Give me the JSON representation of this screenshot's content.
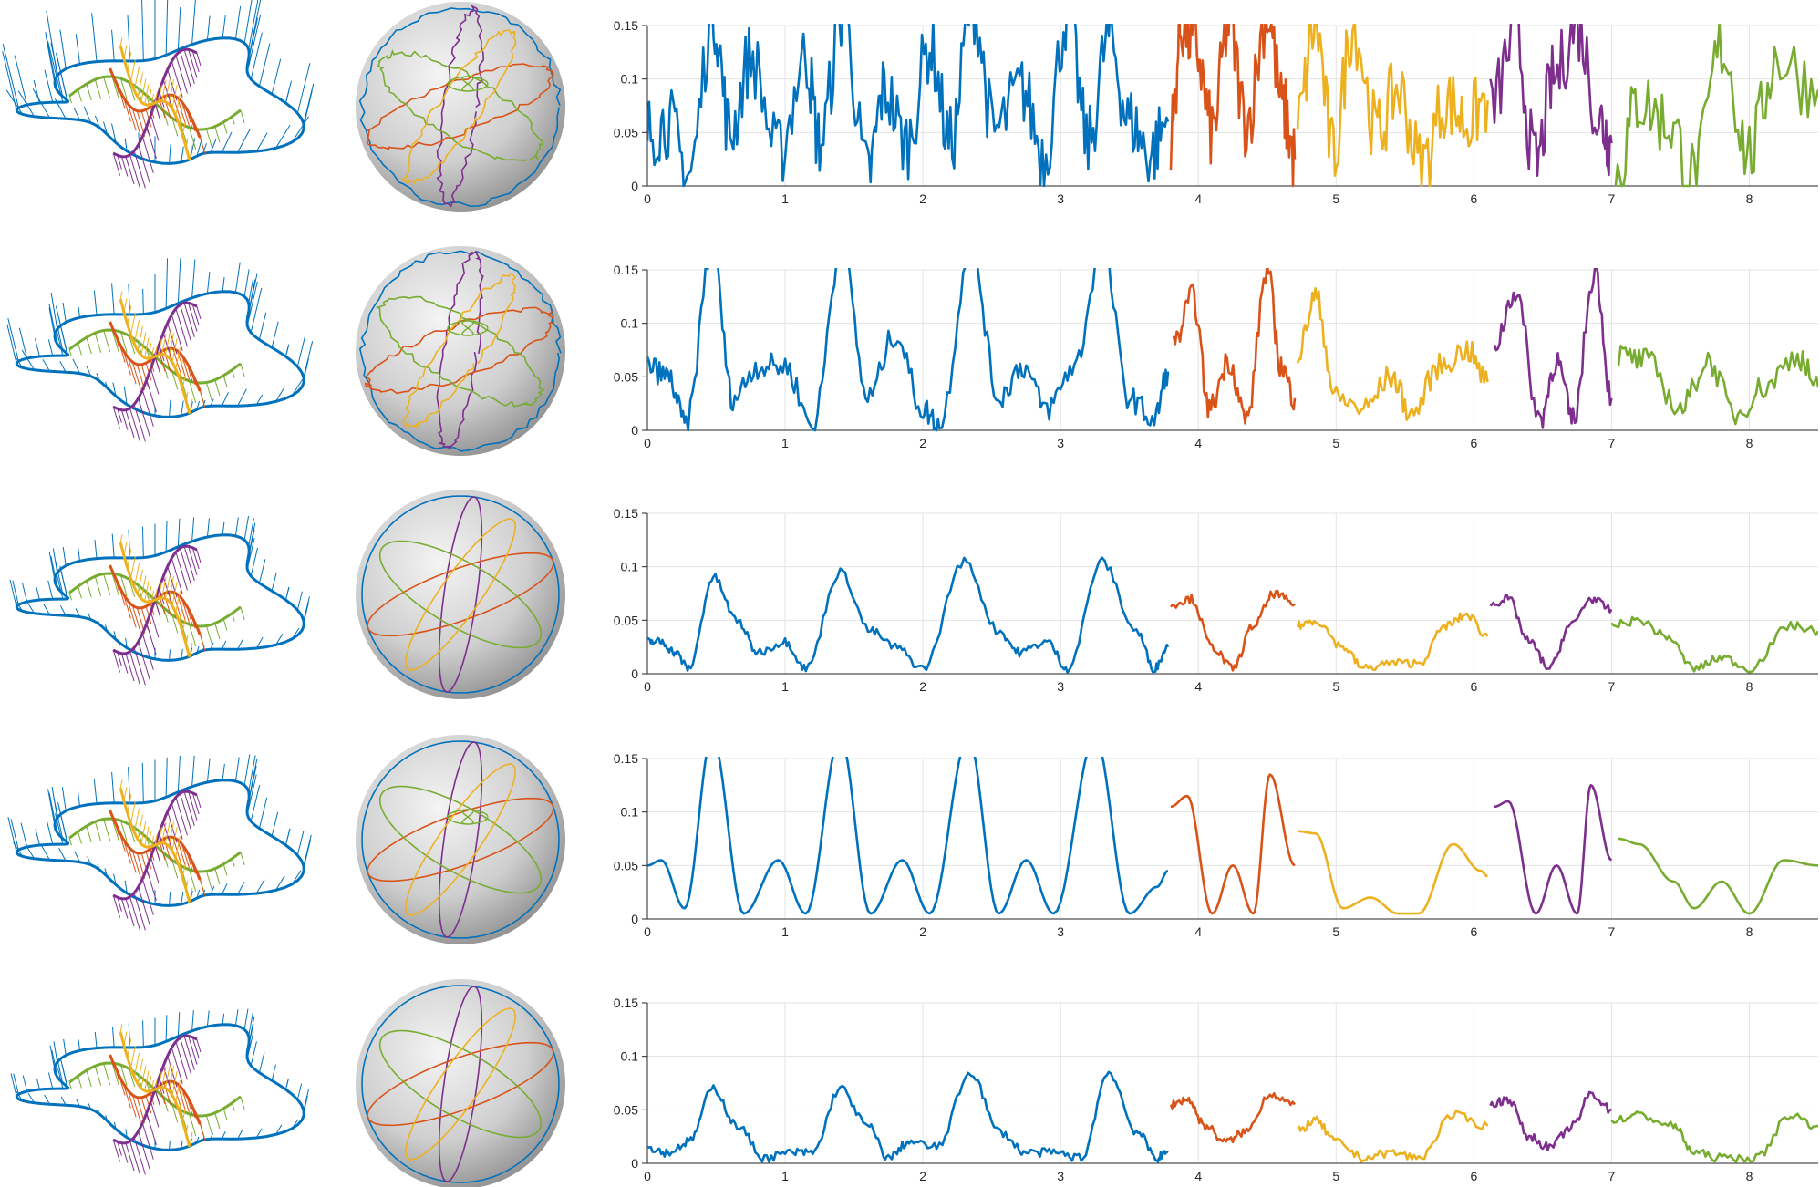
{
  "figure": {
    "colors": {
      "blue": "#0072BD",
      "orange": "#D95319",
      "yellow": "#EDB120",
      "purple": "#7E2F8E",
      "green": "#77AC30",
      "grid": "#e3e3e3",
      "axis": "#262626",
      "sphere_light": "#f2f2f2",
      "sphere_dark": "#8e8e8e"
    },
    "rows": 5,
    "row_labels": [
      "",
      "",
      "",
      "",
      ""
    ]
  },
  "chart_data": [
    {
      "type": "line",
      "row": 1,
      "noise": "high",
      "xlim": [
        0,
        8.5
      ],
      "ylim": [
        0,
        0.15
      ],
      "xticks": [
        "0",
        "1",
        "2",
        "3",
        "4",
        "5",
        "6",
        "7",
        "8"
      ],
      "yticks": [
        "0",
        "0.05",
        "0.1",
        "0.15"
      ],
      "grid": true,
      "segments": [
        {
          "color": "blue",
          "x": [
            0.0,
            0.15,
            0.3,
            0.48,
            0.6,
            0.75,
            0.95,
            1.15,
            1.25,
            1.42,
            1.6,
            1.72,
            1.88,
            2.05,
            2.2,
            2.36,
            2.52,
            2.72,
            2.88,
            3.05,
            3.2,
            3.35,
            3.5,
            3.65,
            3.78
          ],
          "y": [
            0.05,
            0.06,
            0.01,
            0.16,
            0.05,
            0.12,
            0.03,
            0.12,
            0.04,
            0.16,
            0.01,
            0.09,
            0.04,
            0.13,
            0.04,
            0.17,
            0.05,
            0.09,
            0.03,
            0.16,
            0.04,
            0.14,
            0.06,
            0.03,
            0.06
          ]
        },
        {
          "color": "orange",
          "x": [
            3.8,
            3.88,
            3.98,
            4.1,
            4.22,
            4.35,
            4.5,
            4.62,
            4.7
          ],
          "y": [
            0.05,
            0.15,
            0.13,
            0.05,
            0.15,
            0.06,
            0.16,
            0.07,
            0.025
          ]
        },
        {
          "color": "yellow",
          "x": [
            4.72,
            4.85,
            4.98,
            5.12,
            5.3,
            5.45,
            5.62,
            5.8,
            5.95,
            6.1
          ],
          "y": [
            0.06,
            0.15,
            0.03,
            0.15,
            0.05,
            0.09,
            0.02,
            0.08,
            0.06,
            0.08
          ]
        },
        {
          "color": "purple",
          "x": [
            6.12,
            6.3,
            6.45,
            6.58,
            6.75,
            6.92,
            7.0
          ],
          "y": [
            0.07,
            0.14,
            0.02,
            0.1,
            0.15,
            0.06,
            0.04
          ]
        },
        {
          "color": "green",
          "x": [
            7.03,
            7.2,
            7.4,
            7.6,
            7.8,
            8.0,
            8.2,
            8.5
          ],
          "y": [
            0.01,
            0.08,
            0.06,
            0.01,
            0.13,
            0.03,
            0.12,
            0.09
          ]
        }
      ]
    },
    {
      "type": "line",
      "row": 2,
      "noise": "medium",
      "xlim": [
        0,
        8.5
      ],
      "ylim": [
        0,
        0.15
      ],
      "xticks": [
        "0",
        "1",
        "2",
        "3",
        "4",
        "5",
        "6",
        "7",
        "8"
      ],
      "yticks": [
        "0",
        "0.05",
        "0.1",
        "0.15"
      ],
      "grid": true,
      "segments": [
        {
          "color": "blue",
          "x": [
            0.0,
            0.15,
            0.28,
            0.47,
            0.62,
            0.8,
            1.0,
            1.2,
            1.41,
            1.6,
            1.8,
            2.0,
            2.12,
            2.35,
            2.55,
            2.72,
            2.9,
            3.1,
            3.3,
            3.5,
            3.68,
            3.78
          ],
          "y": [
            0.06,
            0.05,
            0.005,
            0.17,
            0.03,
            0.06,
            0.06,
            0.005,
            0.17,
            0.03,
            0.09,
            0.02,
            0.005,
            0.17,
            0.03,
            0.06,
            0.02,
            0.06,
            0.17,
            0.03,
            0.01,
            0.055
          ]
        },
        {
          "color": "orange",
          "x": [
            3.82,
            3.96,
            4.08,
            4.22,
            4.35,
            4.5,
            4.6,
            4.7
          ],
          "y": [
            0.08,
            0.125,
            0.02,
            0.065,
            0.01,
            0.15,
            0.06,
            0.03
          ]
        },
        {
          "color": "yellow",
          "x": [
            4.72,
            4.85,
            5.0,
            5.2,
            5.4,
            5.55,
            5.75,
            5.95,
            6.1
          ],
          "y": [
            0.07,
            0.125,
            0.03,
            0.02,
            0.05,
            0.015,
            0.06,
            0.075,
            0.045
          ]
        },
        {
          "color": "purple",
          "x": [
            6.15,
            6.3,
            6.48,
            6.6,
            6.72,
            6.88,
            7.0
          ],
          "y": [
            0.08,
            0.13,
            0.01,
            0.065,
            0.01,
            0.15,
            0.03
          ]
        },
        {
          "color": "green",
          "x": [
            7.05,
            7.25,
            7.5,
            7.7,
            7.9,
            8.1,
            8.35,
            8.5
          ],
          "y": [
            0.07,
            0.065,
            0.02,
            0.065,
            0.015,
            0.04,
            0.07,
            0.04
          ]
        }
      ]
    },
    {
      "type": "line",
      "row": 3,
      "noise": "low",
      "xlim": [
        0,
        8.5
      ],
      "ylim": [
        0,
        0.15
      ],
      "xticks": [
        "0",
        "1",
        "2",
        "3",
        "4",
        "5",
        "6",
        "7",
        "8"
      ],
      "yticks": [
        "0",
        "0.05",
        "0.1",
        "0.15"
      ],
      "grid": true,
      "segments": [
        {
          "color": "blue",
          "x": [
            0.0,
            0.1,
            0.2,
            0.3,
            0.48,
            0.65,
            0.8,
            1.0,
            1.15,
            1.4,
            1.62,
            1.8,
            2.0,
            2.3,
            2.55,
            2.7,
            2.9,
            3.05,
            3.3,
            3.55,
            3.68,
            3.78
          ],
          "y": [
            0.03,
            0.03,
            0.02,
            0.005,
            0.09,
            0.05,
            0.02,
            0.03,
            0.005,
            0.095,
            0.04,
            0.025,
            0.005,
            0.105,
            0.04,
            0.02,
            0.03,
            0.005,
            0.105,
            0.04,
            0.005,
            0.025
          ]
        },
        {
          "color": "orange",
          "x": [
            3.8,
            3.95,
            4.1,
            4.25,
            4.4,
            4.55,
            4.7
          ],
          "y": [
            0.065,
            0.07,
            0.025,
            0.005,
            0.045,
            0.075,
            0.065
          ]
        },
        {
          "color": "yellow",
          "x": [
            4.72,
            4.85,
            5.05,
            5.2,
            5.4,
            5.6,
            5.8,
            5.95,
            6.1
          ],
          "y": [
            0.045,
            0.05,
            0.025,
            0.005,
            0.01,
            0.01,
            0.045,
            0.055,
            0.035
          ]
        },
        {
          "color": "purple",
          "x": [
            6.12,
            6.25,
            6.4,
            6.55,
            6.7,
            6.85,
            7.0
          ],
          "y": [
            0.065,
            0.07,
            0.03,
            0.005,
            0.045,
            0.07,
            0.06
          ]
        },
        {
          "color": "green",
          "x": [
            7.0,
            7.2,
            7.4,
            7.6,
            7.8,
            8.0,
            8.3,
            8.5
          ],
          "y": [
            0.045,
            0.05,
            0.035,
            0.005,
            0.015,
            0.005,
            0.045,
            0.04
          ]
        }
      ]
    },
    {
      "type": "line",
      "row": 4,
      "noise": "smooth",
      "xlim": [
        0,
        8.5
      ],
      "ylim": [
        0,
        0.15
      ],
      "xticks": [
        "0",
        "1",
        "2",
        "3",
        "4",
        "5",
        "6",
        "7",
        "8"
      ],
      "yticks": [
        "0",
        "0.05",
        "0.1",
        "0.15"
      ],
      "grid": true,
      "segments": [
        {
          "color": "blue",
          "x": [
            0.0,
            0.1,
            0.27,
            0.47,
            0.7,
            0.95,
            1.15,
            1.4,
            1.62,
            1.85,
            2.05,
            2.33,
            2.55,
            2.75,
            2.95,
            3.25,
            3.5,
            3.7,
            3.78
          ],
          "y": [
            0.05,
            0.055,
            0.01,
            0.17,
            0.005,
            0.055,
            0.005,
            0.17,
            0.005,
            0.055,
            0.005,
            0.17,
            0.005,
            0.055,
            0.005,
            0.17,
            0.005,
            0.03,
            0.045
          ]
        },
        {
          "color": "orange",
          "x": [
            3.8,
            3.92,
            4.1,
            4.25,
            4.4,
            4.52,
            4.7
          ],
          "y": [
            0.105,
            0.115,
            0.005,
            0.05,
            0.005,
            0.135,
            0.05
          ]
        },
        {
          "color": "yellow",
          "x": [
            4.72,
            4.85,
            5.05,
            5.25,
            5.45,
            5.6,
            5.85,
            6.05,
            6.1
          ],
          "y": [
            0.082,
            0.08,
            0.01,
            0.02,
            0.005,
            0.005,
            0.07,
            0.045,
            0.04
          ]
        },
        {
          "color": "purple",
          "x": [
            6.15,
            6.25,
            6.45,
            6.6,
            6.75,
            6.85,
            7.0
          ],
          "y": [
            0.105,
            0.11,
            0.005,
            0.05,
            0.005,
            0.125,
            0.055
          ]
        },
        {
          "color": "green",
          "x": [
            7.05,
            7.2,
            7.45,
            7.6,
            7.8,
            8.0,
            8.25,
            8.5
          ],
          "y": [
            0.075,
            0.07,
            0.035,
            0.01,
            0.035,
            0.005,
            0.055,
            0.05
          ]
        }
      ]
    },
    {
      "type": "line",
      "row": 5,
      "noise": "low",
      "xlim": [
        0,
        8.5
      ],
      "ylim": [
        0,
        0.15
      ],
      "xticks": [
        "0",
        "1",
        "2",
        "3",
        "4",
        "5",
        "6",
        "7",
        "8"
      ],
      "yticks": [
        "0",
        "0.05",
        "0.1",
        "0.15"
      ],
      "grid": true,
      "segments": [
        {
          "color": "blue",
          "x": [
            0.0,
            0.15,
            0.3,
            0.48,
            0.65,
            0.85,
            1.05,
            1.2,
            1.4,
            1.6,
            1.75,
            1.9,
            2.1,
            2.35,
            2.55,
            2.75,
            2.95,
            3.15,
            3.35,
            3.55,
            3.7,
            3.78
          ],
          "y": [
            0.015,
            0.01,
            0.02,
            0.07,
            0.035,
            0.005,
            0.01,
            0.01,
            0.07,
            0.035,
            0.005,
            0.02,
            0.015,
            0.085,
            0.03,
            0.01,
            0.01,
            0.005,
            0.085,
            0.03,
            0.005,
            0.01
          ]
        },
        {
          "color": "orange",
          "x": [
            3.8,
            3.92,
            4.05,
            4.2,
            4.35,
            4.52,
            4.7
          ],
          "y": [
            0.055,
            0.06,
            0.035,
            0.02,
            0.03,
            0.065,
            0.055
          ]
        },
        {
          "color": "yellow",
          "x": [
            4.72,
            4.85,
            5.0,
            5.2,
            5.4,
            5.6,
            5.85,
            6.1
          ],
          "y": [
            0.03,
            0.04,
            0.02,
            0.005,
            0.01,
            0.005,
            0.045,
            0.035
          ]
        },
        {
          "color": "purple",
          "x": [
            6.12,
            6.25,
            6.4,
            6.55,
            6.72,
            6.85,
            7.0
          ],
          "y": [
            0.055,
            0.06,
            0.025,
            0.015,
            0.035,
            0.065,
            0.05
          ]
        },
        {
          "color": "green",
          "x": [
            7.0,
            7.2,
            7.45,
            7.6,
            7.8,
            8.05,
            8.3,
            8.5
          ],
          "y": [
            0.04,
            0.045,
            0.035,
            0.01,
            0.005,
            0.005,
            0.045,
            0.035
          ]
        }
      ]
    }
  ]
}
